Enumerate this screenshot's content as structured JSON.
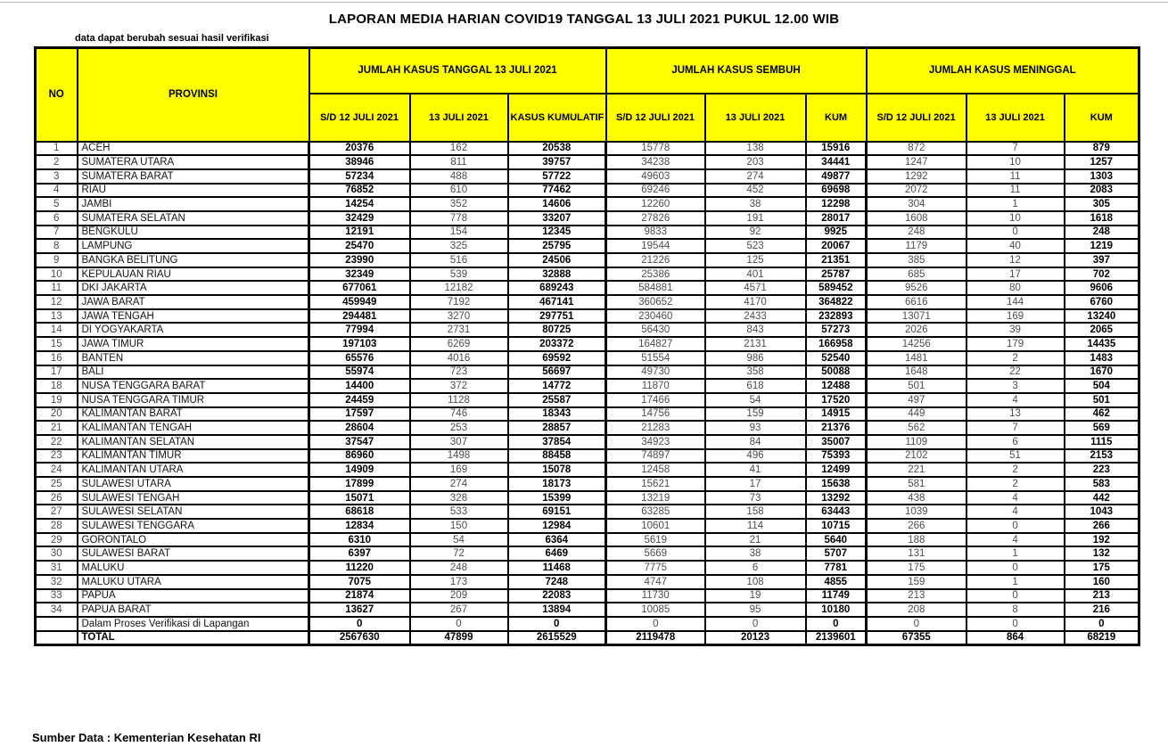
{
  "title": "LAPORAN MEDIA HARIAN COVID19 TANGGAL 13 JULI 2021 PUKUL 12.00 WIB",
  "note": "data dapat berubah sesuai hasil verifikasi",
  "source": "Sumber Data : Kementerian Kesehatan RI",
  "colors": {
    "header_bg": "#ffff00",
    "border": "#000000",
    "bold_text": "#000000",
    "regular_text": "#4d4d4d"
  },
  "table": {
    "columns": {
      "no": "NO",
      "provinsi": "PROVINSI",
      "group_kasus": "JUMLAH KASUS TANGGAL 13 JULI 2021",
      "group_sembuh": "JUMLAH KASUS SEMBUH",
      "group_meninggal": "JUMLAH KASUS MENINGGAL",
      "sub": [
        "S/D 12 JULI 2021",
        "13 JULI 2021",
        "KASUS KUMULATIF",
        "S/D 12 JULI 2021",
        "13 JULI 2021",
        "KUM",
        "S/D 12 JULI 2021",
        "13 JULI 2021",
        "KUM"
      ]
    },
    "rows": [
      [
        1,
        "ACEH",
        20376,
        162,
        20538,
        15778,
        138,
        15916,
        872,
        7,
        879
      ],
      [
        2,
        "SUMATERA UTARA",
        38946,
        811,
        39757,
        34238,
        203,
        34441,
        1247,
        10,
        1257
      ],
      [
        3,
        "SUMATERA BARAT",
        57234,
        488,
        57722,
        49603,
        274,
        49877,
        1292,
        11,
        1303
      ],
      [
        4,
        "RIAU",
        76852,
        610,
        77462,
        69246,
        452,
        69698,
        2072,
        11,
        2083
      ],
      [
        5,
        "JAMBI",
        14254,
        352,
        14606,
        12260,
        38,
        12298,
        304,
        1,
        305
      ],
      [
        6,
        "SUMATERA SELATAN",
        32429,
        778,
        33207,
        27826,
        191,
        28017,
        1608,
        10,
        1618
      ],
      [
        7,
        "BENGKULU",
        12191,
        154,
        12345,
        9833,
        92,
        9925,
        248,
        0,
        248
      ],
      [
        8,
        "LAMPUNG",
        25470,
        325,
        25795,
        19544,
        523,
        20067,
        1179,
        40,
        1219
      ],
      [
        9,
        "BANGKA BELITUNG",
        23990,
        516,
        24506,
        21226,
        125,
        21351,
        385,
        12,
        397
      ],
      [
        10,
        "KEPULAUAN RIAU",
        32349,
        539,
        32888,
        25386,
        401,
        25787,
        685,
        17,
        702
      ],
      [
        11,
        "DKI JAKARTA",
        677061,
        12182,
        689243,
        584881,
        4571,
        589452,
        9526,
        80,
        9606
      ],
      [
        12,
        "JAWA BARAT",
        459949,
        7192,
        467141,
        360652,
        4170,
        364822,
        6616,
        144,
        6760
      ],
      [
        13,
        "JAWA TENGAH",
        294481,
        3270,
        297751,
        230460,
        2433,
        232893,
        13071,
        169,
        13240
      ],
      [
        14,
        "DI YOGYAKARTA",
        77994,
        2731,
        80725,
        56430,
        843,
        57273,
        2026,
        39,
        2065
      ],
      [
        15,
        "JAWA TIMUR",
        197103,
        6269,
        203372,
        164827,
        2131,
        166958,
        14256,
        179,
        14435
      ],
      [
        16,
        "BANTEN",
        65576,
        4016,
        69592,
        51554,
        986,
        52540,
        1481,
        2,
        1483
      ],
      [
        17,
        "BALI",
        55974,
        723,
        56697,
        49730,
        358,
        50088,
        1648,
        22,
        1670
      ],
      [
        18,
        "NUSA TENGGARA BARAT",
        14400,
        372,
        14772,
        11870,
        618,
        12488,
        501,
        3,
        504
      ],
      [
        19,
        "NUSA TENGGARA TIMUR",
        24459,
        1128,
        25587,
        17466,
        54,
        17520,
        497,
        4,
        501
      ],
      [
        20,
        "KALIMANTAN BARAT",
        17597,
        746,
        18343,
        14756,
        159,
        14915,
        449,
        13,
        462
      ],
      [
        21,
        "KALIMANTAN TENGAH",
        28604,
        253,
        28857,
        21283,
        93,
        21376,
        562,
        7,
        569
      ],
      [
        22,
        "KALIMANTAN SELATAN",
        37547,
        307,
        37854,
        34923,
        84,
        35007,
        1109,
        6,
        1115
      ],
      [
        23,
        "KALIMANTAN TIMUR",
        86960,
        1498,
        88458,
        74897,
        496,
        75393,
        2102,
        51,
        2153
      ],
      [
        24,
        "KALIMANTAN UTARA",
        14909,
        169,
        15078,
        12458,
        41,
        12499,
        221,
        2,
        223
      ],
      [
        25,
        "SULAWESI UTARA",
        17899,
        274,
        18173,
        15621,
        17,
        15638,
        581,
        2,
        583
      ],
      [
        26,
        "SULAWESI TENGAH",
        15071,
        328,
        15399,
        13219,
        73,
        13292,
        438,
        4,
        442
      ],
      [
        27,
        "SULAWESI SELATAN",
        68618,
        533,
        69151,
        63285,
        158,
        63443,
        1039,
        4,
        1043
      ],
      [
        28,
        "SULAWESI TENGGARA",
        12834,
        150,
        12984,
        10601,
        114,
        10715,
        266,
        0,
        266
      ],
      [
        29,
        "GORONTALO",
        6310,
        54,
        6364,
        5619,
        21,
        5640,
        188,
        4,
        192
      ],
      [
        30,
        "SULAWESI BARAT",
        6397,
        72,
        6469,
        5669,
        38,
        5707,
        131,
        1,
        132
      ],
      [
        31,
        "MALUKU",
        11220,
        248,
        11468,
        7775,
        6,
        7781,
        175,
        0,
        175
      ],
      [
        32,
        "MALUKU UTARA",
        7075,
        173,
        7248,
        4747,
        108,
        4855,
        159,
        1,
        160
      ],
      [
        33,
        "PAPUA",
        21874,
        209,
        22083,
        11730,
        19,
        11749,
        213,
        0,
        213
      ],
      [
        34,
        "PAPUA BARAT",
        13627,
        267,
        13894,
        10085,
        95,
        10180,
        208,
        8,
        216
      ]
    ],
    "verification_row": [
      "",
      "Dalam Proses Verifikasi di Lapangan",
      0,
      0,
      0,
      0,
      0,
      0,
      0,
      0,
      0
    ],
    "total_row": [
      "",
      "TOTAL",
      2567630,
      47899,
      2615529,
      2119478,
      20123,
      2139601,
      67355,
      864,
      68219
    ]
  }
}
